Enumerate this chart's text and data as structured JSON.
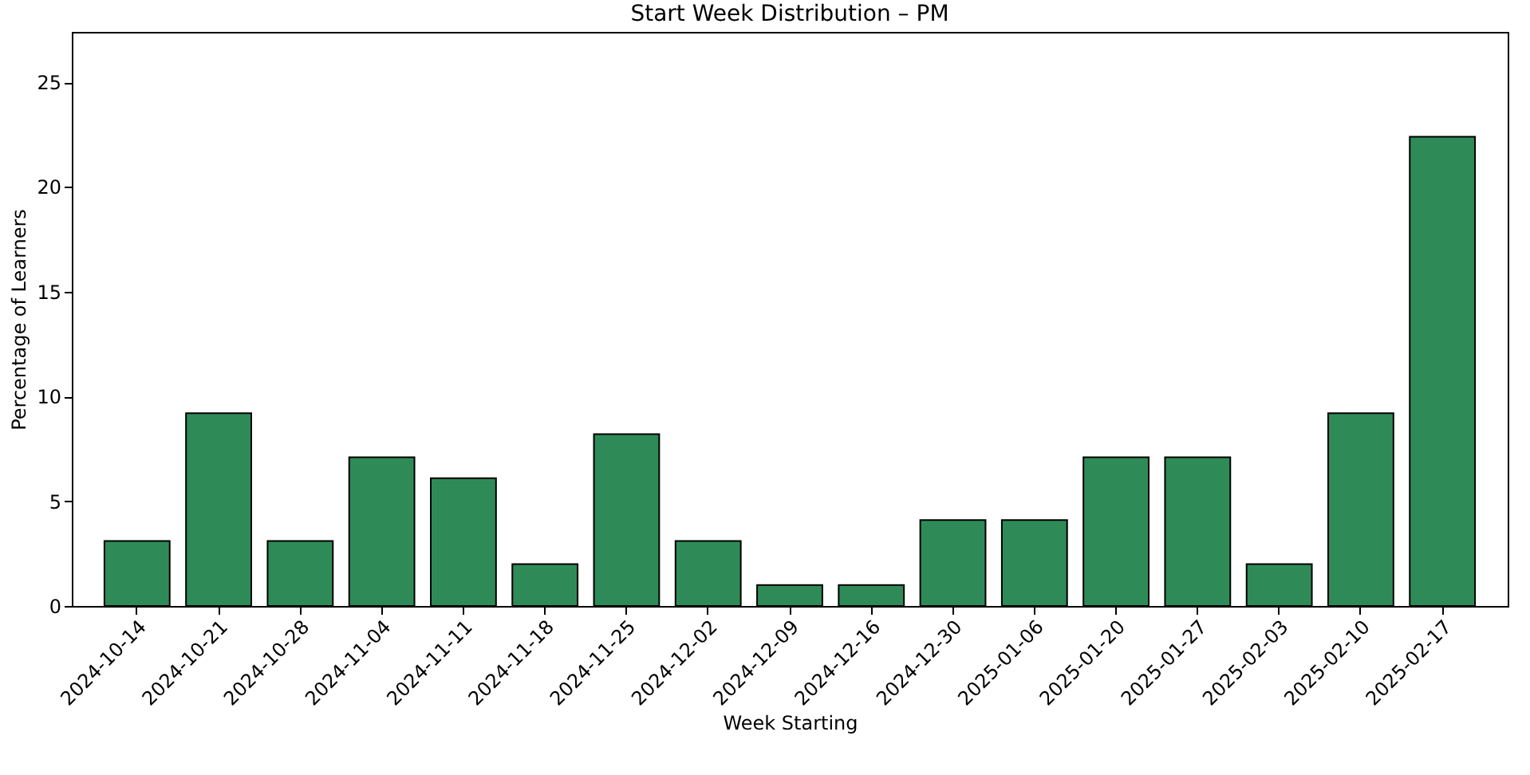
{
  "chart_data": {
    "type": "bar",
    "title": "Start Week Distribution – PM",
    "xlabel": "Week Starting",
    "ylabel": "Percentage of Learners",
    "categories": [
      "2024-10-14",
      "2024-10-21",
      "2024-10-28",
      "2024-11-04",
      "2024-11-11",
      "2024-11-18",
      "2024-11-25",
      "2024-12-02",
      "2024-12-09",
      "2024-12-16",
      "2024-12-30",
      "2025-01-06",
      "2025-01-20",
      "2025-01-27",
      "2025-02-03",
      "2025-02-10",
      "2025-02-17"
    ],
    "values": [
      3.1,
      9.2,
      3.1,
      7.1,
      6.1,
      2.0,
      8.2,
      3.1,
      1.0,
      1.0,
      4.1,
      4.1,
      7.1,
      7.1,
      2.0,
      9.2,
      22.4
    ],
    "color": "#2e8b57",
    "ylim": [
      0,
      27.4
    ],
    "yticks": [
      0,
      5,
      10,
      15,
      20,
      25
    ],
    "grid": false
  }
}
